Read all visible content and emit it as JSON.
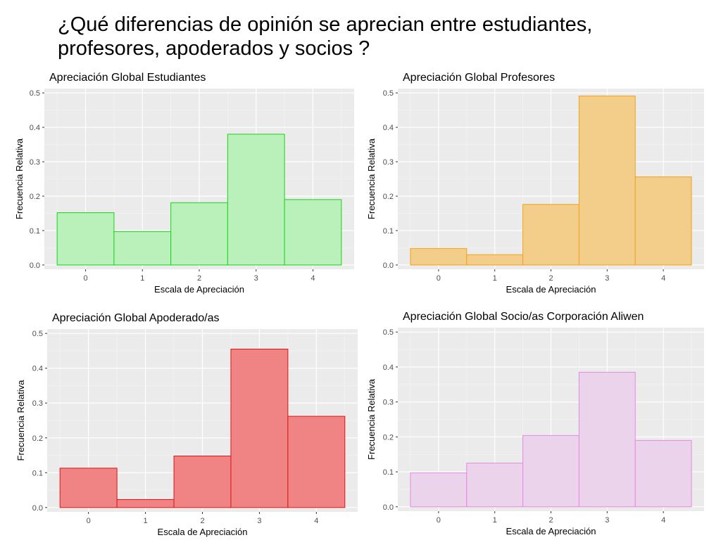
{
  "slide": {
    "title": "¿Qué diferencias de opinión se aprecian entre estudiantes, profesores, apoderados y socios ?"
  },
  "chart_data": [
    {
      "type": "bar",
      "title": "Apreciación Global Estudiantes",
      "xlabel": "Escala de Apreciación",
      "ylabel": "Frecuencia Relativa",
      "categories": [
        "0",
        "1",
        "2",
        "3",
        "4"
      ],
      "values": [
        0.152,
        0.097,
        0.181,
        0.38,
        0.19
      ],
      "ylim": [
        0,
        0.5
      ],
      "yticks": [
        "0.0",
        "0.1",
        "0.2",
        "0.3",
        "0.4",
        "0.5"
      ],
      "fill": "#baf0ba",
      "stroke": "#19d319",
      "grid": true
    },
    {
      "type": "bar",
      "title": "Apreciación Global Profesores",
      "xlabel": "Escala de Apreciación",
      "ylabel": "Frecuencia Relativa",
      "categories": [
        "0",
        "1",
        "2",
        "3",
        "4"
      ],
      "values": [
        0.048,
        0.03,
        0.176,
        0.491,
        0.256
      ],
      "ylim": [
        0,
        0.5
      ],
      "yticks": [
        "0.0",
        "0.1",
        "0.2",
        "0.3",
        "0.4",
        "0.5"
      ],
      "fill": "#f2ce8a",
      "stroke": "#f0a21e",
      "grid": true
    },
    {
      "type": "bar",
      "title": "Apreciación Global Apoderado/as",
      "xlabel": "Escala de Apreciación",
      "ylabel": "Frecuencia Relativa",
      "categories": [
        "0",
        "1",
        "2",
        "3",
        "4"
      ],
      "values": [
        0.113,
        0.023,
        0.148,
        0.455,
        0.262
      ],
      "ylim": [
        0,
        0.5
      ],
      "yticks": [
        "0.0",
        "0.1",
        "0.2",
        "0.3",
        "0.4",
        "0.5"
      ],
      "fill": "#f08484",
      "stroke": "#d81616",
      "grid": true
    },
    {
      "type": "bar",
      "title": "Apreciación Global Socio/as Corporación Aliwen",
      "xlabel": "Escala de Apreciación",
      "ylabel": "Frecuencia Relativa",
      "categories": [
        "0",
        "1",
        "2",
        "3",
        "4"
      ],
      "values": [
        0.097,
        0.125,
        0.204,
        0.385,
        0.19
      ],
      "ylim": [
        0,
        0.5
      ],
      "yticks": [
        "0.0",
        "0.1",
        "0.2",
        "0.3",
        "0.4",
        "0.5"
      ],
      "fill": "#ebd3eb",
      "stroke": "#e38ae3",
      "grid": true
    }
  ]
}
